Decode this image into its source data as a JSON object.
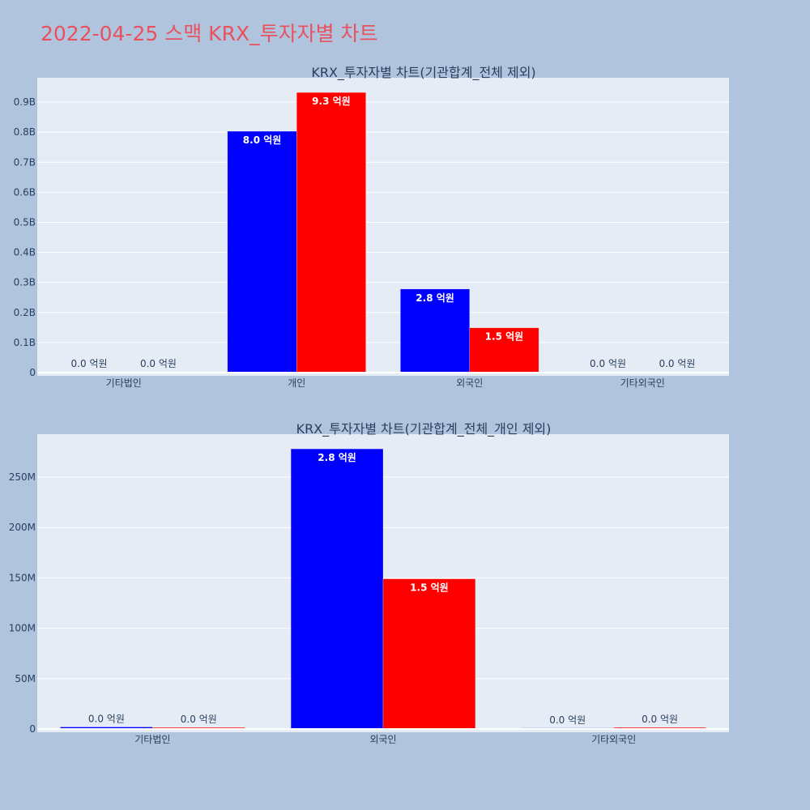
{
  "page_title": "2022-04-25 스맥 KRX_투자자별 차트",
  "colors": {
    "background": "#b0c4de",
    "plot_bg": "#e5ecf6",
    "title": "#e8525f",
    "series_a": "#0000ff",
    "series_b": "#ff0000"
  },
  "chart_data": [
    {
      "type": "bar",
      "title": "KRX_투자자별 차트(기관합계_전체 제외)",
      "categories": [
        "기타법인",
        "개인",
        "외국인",
        "기타외국인"
      ],
      "series": [
        {
          "color": "#0000ff",
          "values": [
            1000000,
            803000000,
            278000000,
            600000
          ],
          "labels": [
            "0.0 억원",
            "8.0 억원",
            "2.8 억원",
            "0.0 억원"
          ]
        },
        {
          "color": "#ff0000",
          "values": [
            1000000,
            932000000,
            149000000,
            1000000
          ],
          "labels": [
            "0.0 억원",
            "9.3 억원",
            "1.5 억원",
            "0.0 억원"
          ]
        }
      ],
      "yticks": [
        0,
        100000000,
        200000000,
        300000000,
        400000000,
        500000000,
        600000000,
        700000000,
        800000000,
        900000000
      ],
      "ytick_labels": [
        "0",
        "0.1B",
        "0.2B",
        "0.3B",
        "0.4B",
        "0.5B",
        "0.6B",
        "0.7B",
        "0.8B",
        "0.9B"
      ],
      "ylim": [
        0,
        981000000
      ],
      "grid": true
    },
    {
      "type": "bar",
      "title": "KRX_투자자별 차트(기관합계_전체_개인 제외)",
      "categories": [
        "기타법인",
        "외국인",
        "기타외국인"
      ],
      "series": [
        {
          "color": "#0000ff",
          "values": [
            2000000,
            278000000,
            1000000
          ],
          "labels": [
            "0.0 억원",
            "2.8 억원",
            "0.0 억원"
          ]
        },
        {
          "color": "#ff0000",
          "values": [
            1500000,
            149000000,
            1500000
          ],
          "labels": [
            "0.0 억원",
            "1.5 억원",
            "0.0 억원"
          ]
        }
      ],
      "yticks": [
        0,
        50000000,
        100000000,
        150000000,
        200000000,
        250000000
      ],
      "ytick_labels": [
        "0",
        "50M",
        "100M",
        "150M",
        "200M",
        "250M"
      ],
      "ylim": [
        0,
        292600000
      ],
      "grid": true
    }
  ]
}
